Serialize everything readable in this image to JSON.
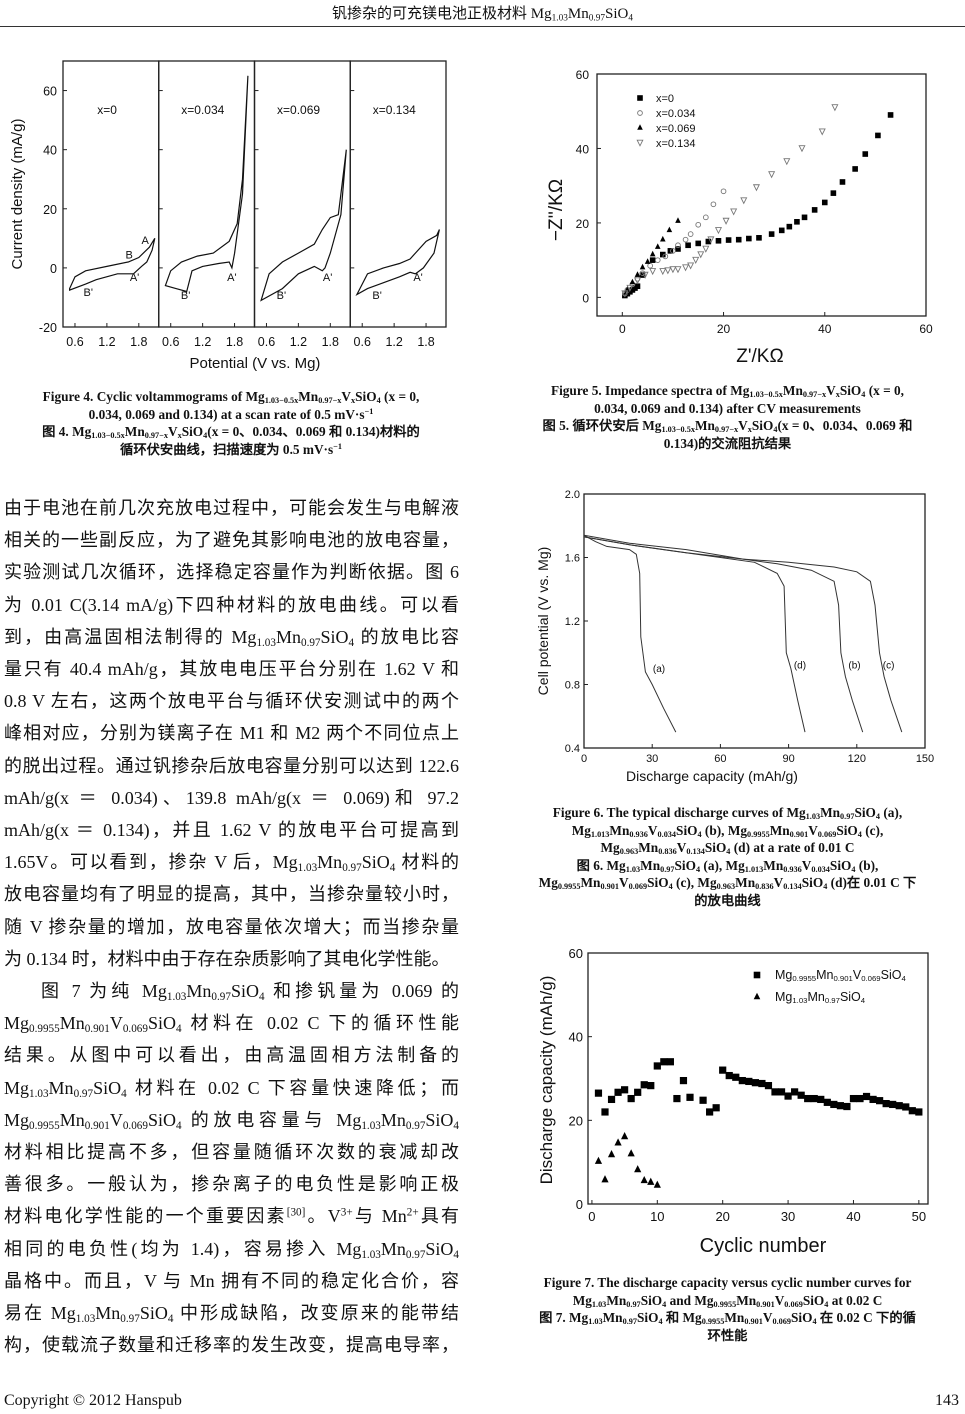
{
  "header": {
    "title": "钒掺杂的可充镁电池正极材料 Mg_{1.03}Mn_{0.97}SiO_{4}"
  },
  "body_text": {
    "lines": [
      "由于电池在前几次充放电过程中，可能会发生与电解液",
      "相关的一些副反应，为了避免其影响电池的放电容量，",
      "实验测试几次循环，选择稳定容量作为判断依据。图 6",
      "为 0.01 C(3.14 mA/g)下四种材料的放电曲线。可以看",
      "到，由高温固相法制得的 Mg_{1.03}Mn_{0.97}SiO_{4} 的放电比容",
      "量只有 40.4 mAh/g，其放电电压平台分别在 1.62 V 和",
      "0.8 V 左右，这两个放电平台与循环伏安测试中的两个",
      "峰相对应，分别为镁离子在 M1 和 M2 两个不同位点上",
      "的脱出过程。通过钒掺杂后放电容量分别可以达到 122.6",
      "mAh/g(x ＝ 0.034)、139.8 mAh/g(x ＝ 0.069)和 97.2",
      "mAh/g(x ＝ 0.134)，并且 1.62 V 的放电平台可提高到",
      "1.65V。可以看到，掺杂 V 后，Mg_{1.03}Mn_{0.97}SiO_{4} 材料的",
      "放电容量均有了明显的提高，其中，当掺杂量较小时，",
      "随 V 掺杂量的增加，放电容量依次增大；而当掺杂量",
      "为 0.134 时，材料中由于存在杂质影响了其电化学性能。",
      "图 7 为纯 Mg_{1.03}Mn_{0.97}SiO_{4} 和掺钒量为 0.069 的",
      "Mg_{0.9955}Mn_{0.901}V_{0.069}SiO_{4} 材料在 0.02 C 下的循环性能",
      "结果。从图中可以看出，由高温固相方法制备的",
      "Mg_{1.03}Mn_{0.97}SiO_{4} 材料在 0.02 C 下容量快速降低；而",
      "Mg_{0.9955}Mn_{0.901}V_{0.069}SiO_{4} 的放电容量与 Mg_{1.03}Mn_{0.97}SiO_{4}",
      "材料相比提高不多，但容量随循环次数的衰减却改",
      "善很多。一般认为，掺杂离子的电负性是影响正极",
      "材料电化学性能的一个重要因素^{[30]}。V^{3+}与 Mn^{2+}具有",
      "相同的电负性(均为 1.4)，容易掺入 Mg_{1.03}Mn_{0.97}SiO_{4}",
      "晶格中。而且，V 与 Mn 拥有不同的稳定化合价，容",
      "易在 Mg_{1.03}Mn_{0.97}SiO_{4} 中形成缺陷，改变原来的能带结",
      "构，使载流子数量和迁移率的发生改变，提高电导率，"
    ]
  },
  "captions": {
    "fig4": [
      "Figure 4. Cyclic voltammograms of Mg_{1.03−0.5x}Mn_{0.97−x}V_{x}SiO_{4} (x = 0,",
      "0.034, 0.069 and 0.134) at a scan rate of 0.5 mV·s^{−1}",
      "图 4. Mg_{1.03−0.5x}Mn_{0.97−x}V_{x}SiO_{4}(x = 0、0.034、0.069 和 0.134)材料的",
      "循环伏安曲线，扫描速度为 0.5 mV·s^{−1}"
    ],
    "fig5": [
      "Figure 5. Impedance spectra of Mg_{1.03−0.5x}Mn_{0.97−x}V_{x}SiO_{4} (x = 0,",
      "0.034, 0.069 and 0.134) after CV measurements",
      "图 5. 循环伏安后 Mg_{1.03−0.5x}Mn_{0.97−x}V_{x}SiO_{4}(x = 0、0.034、0.069 和",
      "0.134)的交流阻抗结果"
    ],
    "fig6": [
      "Figure 6. The typical discharge curves of Mg_{1.03}Mn_{0.97}SiO_{4} (a),",
      "Mg_{1.013}Mn_{0.936}V_{0.034}SiO_{4} (b), Mg_{0.9955}Mn_{0.901}V_{0.069}SiO_{4} (c),",
      "Mg_{0.963}Mn_{0.836}V_{0.134}SiO_{4} (d) at a rate of 0.01 C",
      "图 6. Mg_{1.03}Mn_{0.97}SiO_{4} (a), Mg_{1.013}Mn_{0.936}V_{0.034}SiO_{4} (b),",
      "Mg_{0.9955}Mn_{0.901}V_{0.069}SiO_{4} (c), Mg_{0.963}Mn_{0.836}V_{0.134}SiO_{4} (d)在 0.01 C 下",
      "的放电曲线"
    ],
    "fig7": [
      "Figure 7. The discharge capacity versus cyclic number curves for",
      "Mg_{1.03}Mn_{0.97}SiO_{4} and Mg_{0.9955}Mn_{0.901}V_{0.069}SiO_{4} at 0.02 C",
      "图 7. Mg_{1.03}Mn_{0.97}SiO_{4} 和 Mg_{0.9955}Mn_{0.901}V_{0.069}SiO_{4}  在 0.02 C 下的循",
      "环性能"
    ]
  },
  "footer": {
    "copyright": "Copyright © 2012 Hanspub",
    "page_number": "143"
  },
  "chart_data": [
    {
      "id": "fig4",
      "type": "line",
      "xlabel": "Potential (V vs. Mg)",
      "ylabel": "Current density (mA/g)",
      "xlim": [
        0.375,
        2.175
      ],
      "ylim": [
        -20,
        70
      ],
      "xticks": [
        "0.6",
        "1.2",
        "1.8"
      ],
      "yticks": [
        "-20",
        "0",
        "20",
        "40",
        "60"
      ],
      "panels": [
        {
          "label": "x=0",
          "peaks": [
            "A",
            "B",
            "A'",
            "B'"
          ],
          "x": [
            0.5,
            0.6,
            0.8,
            1.2,
            1.6,
            1.8,
            2.0,
            2.1,
            2.05,
            1.95,
            1.85,
            1.7,
            1.4,
            1.0,
            0.8,
            0.5
          ],
          "y": [
            -7,
            -3,
            -1,
            0.5,
            2,
            3.5,
            7,
            10,
            6,
            2,
            0.5,
            -2,
            -2,
            -4,
            -5.5,
            -7.5
          ]
        },
        {
          "label": "x=0.034",
          "peaks": [
            "A'",
            "B'"
          ],
          "x": [
            0.5,
            0.6,
            0.8,
            1.1,
            1.4,
            1.7,
            1.85,
            1.95,
            2.05,
            1.95,
            1.8,
            1.75,
            1.7,
            1.5,
            1.2,
            1.0,
            0.9,
            0.7,
            0.5
          ],
          "y": [
            -6,
            -1,
            2,
            4,
            5,
            9,
            15,
            30,
            65,
            25,
            5,
            0,
            2,
            1.5,
            0.5,
            -1,
            -8,
            -7,
            -6
          ]
        },
        {
          "label": "x=0.069",
          "peaks": [
            "A'",
            "B'"
          ],
          "x": [
            0.5,
            0.65,
            0.9,
            1.2,
            1.5,
            1.65,
            1.8,
            1.95,
            2.0,
            2.1,
            2.0,
            1.8,
            1.7,
            1.65,
            1.5,
            1.2,
            0.9,
            0.5
          ],
          "y": [
            -11,
            -2,
            2,
            5,
            8,
            13,
            17,
            18,
            25,
            40,
            18,
            5,
            0,
            -1,
            0.5,
            -2,
            -7,
            -11
          ]
        },
        {
          "label": "x=0.134",
          "peaks": [
            "A'",
            "B'"
          ],
          "x": [
            0.5,
            0.7,
            1.0,
            1.3,
            1.5,
            1.6,
            1.8,
            2.0,
            2.05,
            1.95,
            1.75,
            1.6,
            1.5,
            1.3,
            1.0,
            0.7,
            0.5
          ],
          "y": [
            -9,
            -2,
            0,
            1.5,
            3,
            5,
            9,
            11,
            13,
            5,
            0,
            -2,
            -1.5,
            -3,
            -5,
            -7,
            -9
          ]
        }
      ]
    },
    {
      "id": "fig5",
      "type": "scatter",
      "xlabel": "Z'/KΩ",
      "ylabel": "−Z''/KΩ",
      "xlim": [
        -5,
        60
      ],
      "ylim": [
        -5,
        60
      ],
      "xticks": [
        "0",
        "20",
        "40",
        "60"
      ],
      "yticks": [
        "0",
        "20",
        "40",
        "60"
      ],
      "legend": "top-left",
      "series": [
        {
          "name": "x=0",
          "marker": "square-filled",
          "x": [
            0.5,
            1,
            1.5,
            2,
            2.5,
            3,
            4,
            6,
            8,
            9.5,
            11,
            13,
            15,
            17,
            19,
            21,
            23,
            25,
            27,
            29.5,
            31.5,
            33,
            34.5,
            36,
            38,
            40,
            41.7,
            43.5,
            46,
            48,
            50.5,
            53
          ],
          "y": [
            0.5,
            1,
            1.5,
            2,
            2.5,
            3,
            6,
            10,
            11.5,
            12.5,
            13,
            14,
            14.5,
            15,
            15.2,
            15.4,
            15.5,
            15.8,
            16,
            17,
            18,
            19,
            20.3,
            21.5,
            23.5,
            25.5,
            28,
            31,
            34.5,
            38.5,
            43.5,
            49
          ]
        },
        {
          "name": "x=0.034",
          "marker": "circle-open",
          "x": [
            0.5,
            1,
            2,
            3,
            4,
            5.5,
            7,
            8.5,
            10,
            11,
            12.5,
            13.5,
            15,
            16.5,
            18,
            20
          ],
          "y": [
            1,
            2,
            3.5,
            5,
            6.5,
            8.5,
            10,
            11,
            12.5,
            14,
            15.5,
            17,
            19.5,
            21.5,
            25,
            28.5
          ]
        },
        {
          "name": "x=0.069",
          "marker": "triangle-up-filled",
          "x": [
            1,
            2,
            3,
            4,
            5,
            6,
            7,
            8,
            9.3,
            11
          ],
          "y": [
            2,
            4,
            6,
            8,
            9.5,
            11.5,
            13.5,
            15.5,
            18,
            20.5
          ]
        },
        {
          "name": "x=0.134",
          "marker": "triangle-down-open",
          "x": [
            0.5,
            1.5,
            3,
            4.5,
            6,
            8,
            9,
            10,
            11,
            12.5,
            13.5,
            14.5,
            15.5,
            16.5,
            17.5,
            19,
            20.5,
            22,
            24,
            26.5,
            29.5,
            32.5,
            35.5,
            39.5,
            42
          ],
          "y": [
            1,
            2.5,
            4.5,
            6,
            7,
            7,
            7.2,
            7.5,
            7.5,
            8,
            8.5,
            10,
            11.5,
            13,
            15.5,
            18,
            20.5,
            23,
            26,
            29.5,
            33,
            36.5,
            40,
            44.5,
            51
          ]
        }
      ]
    },
    {
      "id": "fig6",
      "type": "line",
      "xlabel": "Discharge capacity (mAh/g)",
      "ylabel": "Cell potential (V vs. Mg)",
      "xlim": [
        0,
        150
      ],
      "ylim": [
        0.4,
        2.0
      ],
      "xticks": [
        "0",
        "30",
        "60",
        "90",
        "120",
        "150"
      ],
      "yticks": [
        "0.4",
        "0.8",
        "1.2",
        "1.6",
        "2.0"
      ],
      "series": [
        {
          "name": "(a)",
          "x": [
            0,
            5,
            10,
            20,
            23,
            24.5,
            25,
            27,
            30,
            35,
            40.4
          ],
          "y": [
            1.74,
            1.7,
            1.67,
            1.65,
            1.62,
            1.5,
            1.1,
            0.88,
            0.8,
            0.65,
            0.5
          ]
        },
        {
          "name": "(d)",
          "x": [
            0,
            20,
            40,
            60,
            75,
            85,
            88,
            89,
            91,
            94,
            97.2
          ],
          "y": [
            1.73,
            1.68,
            1.64,
            1.6,
            1.57,
            1.5,
            1.42,
            1.0,
            0.9,
            0.7,
            0.5
          ]
        },
        {
          "name": "(b)",
          "x": [
            0,
            20,
            45,
            70,
            85,
            100,
            110,
            112,
            113,
            115,
            118,
            122.6
          ],
          "y": [
            1.73,
            1.68,
            1.63,
            1.59,
            1.56,
            1.52,
            1.45,
            1.3,
            1.0,
            0.85,
            0.7,
            0.5
          ]
        },
        {
          "name": "(c)",
          "x": [
            0,
            20,
            45,
            70,
            90,
            110,
            120,
            126,
            128,
            130,
            132,
            135,
            139.8
          ],
          "y": [
            1.74,
            1.69,
            1.65,
            1.59,
            1.57,
            1.54,
            1.51,
            1.45,
            1.3,
            1.0,
            0.85,
            0.7,
            0.5
          ]
        }
      ]
    },
    {
      "id": "fig7",
      "type": "scatter",
      "xlabel": "Cyclic number",
      "ylabel": "Discharge capacity (mAh/g)",
      "xlim": [
        0,
        51
      ],
      "ylim": [
        0,
        60
      ],
      "xticks": [
        "0",
        "10",
        "20",
        "30",
        "40",
        "50"
      ],
      "yticks": [
        "0",
        "20",
        "40",
        "60"
      ],
      "legend": "top-right",
      "series": [
        {
          "name": "Mg_{0.9955}Mn_{0.901}V_{0.069}SiO_{4}",
          "marker": "square-filled",
          "x": [
            1,
            2,
            3,
            4,
            5,
            6,
            7,
            8,
            9,
            10,
            11,
            12,
            13,
            14,
            15,
            17,
            18,
            19,
            20,
            21,
            22,
            23,
            24,
            25,
            26,
            27,
            28,
            29,
            30,
            31,
            32,
            33,
            34,
            35,
            36,
            37,
            38,
            39,
            40,
            41,
            42,
            43,
            44,
            45,
            46,
            47,
            48,
            49,
            50
          ],
          "y": [
            26.5,
            22,
            25,
            26.7,
            27.3,
            25.2,
            26.7,
            28.5,
            28.3,
            33,
            34,
            34,
            25.2,
            29.5,
            25.5,
            24.8,
            22,
            23,
            32,
            30.7,
            30.3,
            29.5,
            29.3,
            29,
            28.8,
            28.3,
            26.8,
            26.8,
            25.8,
            26.8,
            26,
            25.2,
            25.2,
            25,
            24.3,
            23.8,
            23.5,
            23.3,
            25.2,
            25.2,
            25.7,
            25,
            24.7,
            24,
            23.8,
            23.5,
            23.2,
            22.3,
            22
          ]
        },
        {
          "name": "Mg_{1.03}Mn_{0.97}SiO_{4}",
          "marker": "triangle-up-filled",
          "x": [
            1,
            2,
            3,
            4,
            5,
            6,
            7,
            8,
            9,
            10
          ],
          "y": [
            10.2,
            5.8,
            11.8,
            14.6,
            16.1,
            12,
            8.2,
            5.6,
            5.2,
            4.5
          ]
        }
      ]
    }
  ]
}
